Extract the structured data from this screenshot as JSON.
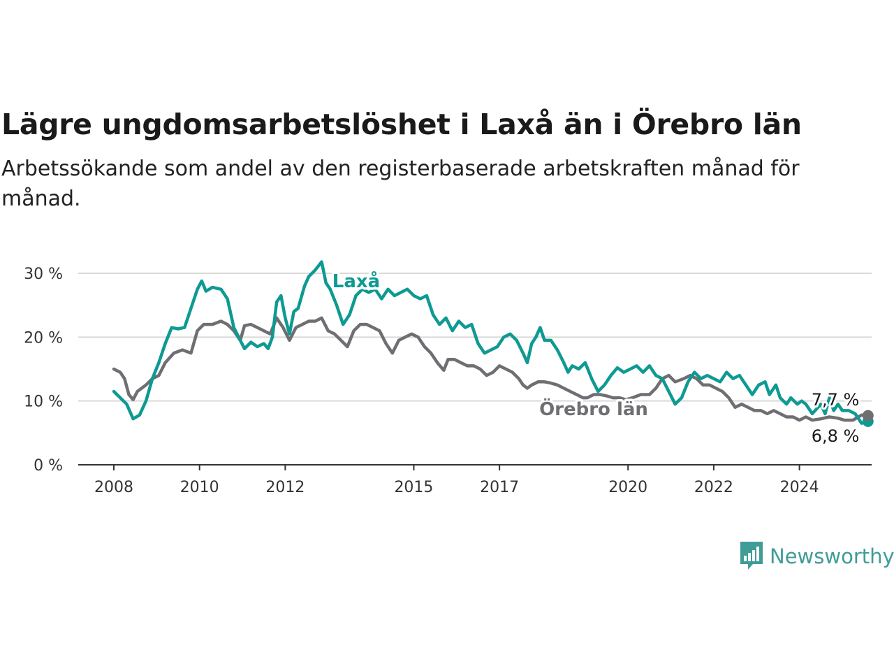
{
  "header": {
    "title": "Lägre ungdomsarbetslöshet i Laxå än i Örebro län",
    "subtitle": "Arbetssökande som andel av den registerbaserade arbetskraften månad för månad."
  },
  "brand": {
    "name": "Newsworthy",
    "icon": "bar-chart-speech-bubble-icon",
    "color": "#3f9c97"
  },
  "chart_data": {
    "type": "line",
    "title": "Lägre ungdomsarbetslöshet i Laxå än i Örebro län",
    "subtitle": "Arbetssökande som andel av den registerbaserade arbetskraften månad för månad.",
    "xlabel": "",
    "ylabel": "",
    "xlim": [
      2008,
      2025.6
    ],
    "ylim": [
      0,
      30
    ],
    "y_ticks": [
      0,
      10,
      20,
      30
    ],
    "y_tick_labels": [
      "0 %",
      "10 %",
      "20 %",
      "30 %"
    ],
    "x_ticks": [
      2008,
      2010,
      2012,
      2015,
      2017,
      2020,
      2022,
      2024
    ],
    "x_tick_labels": [
      "2008",
      "2010",
      "2012",
      "2015",
      "2017",
      "2020",
      "2022",
      "2024"
    ],
    "grid": true,
    "legend": "inline labels",
    "series": [
      {
        "name": "Laxå",
        "color": "#0e9a92",
        "end_label": "6,8 %",
        "points": [
          [
            2008.0,
            11.5
          ],
          [
            2008.15,
            10.5
          ],
          [
            2008.3,
            9.5
          ],
          [
            2008.45,
            7.2
          ],
          [
            2008.6,
            7.8
          ],
          [
            2008.75,
            10
          ],
          [
            2008.9,
            13.5
          ],
          [
            2009.05,
            16
          ],
          [
            2009.2,
            19
          ],
          [
            2009.35,
            21.5
          ],
          [
            2009.5,
            21.3
          ],
          [
            2009.65,
            21.5
          ],
          [
            2009.8,
            24.5
          ],
          [
            2009.95,
            27.5
          ],
          [
            2010.05,
            28.8
          ],
          [
            2010.15,
            27.2
          ],
          [
            2010.3,
            27.8
          ],
          [
            2010.5,
            27.5
          ],
          [
            2010.65,
            26
          ],
          [
            2010.8,
            21.5
          ],
          [
            2010.95,
            19.5
          ],
          [
            2011.05,
            18.2
          ],
          [
            2011.2,
            19.2
          ],
          [
            2011.35,
            18.5
          ],
          [
            2011.5,
            19
          ],
          [
            2011.6,
            18.2
          ],
          [
            2011.7,
            20
          ],
          [
            2011.8,
            25.5
          ],
          [
            2011.9,
            26.5
          ],
          [
            2012.0,
            23
          ],
          [
            2012.1,
            20.5
          ],
          [
            2012.2,
            24
          ],
          [
            2012.3,
            24.5
          ],
          [
            2012.45,
            28
          ],
          [
            2012.55,
            29.5
          ],
          [
            2012.7,
            30.5
          ],
          [
            2012.85,
            31.8
          ],
          [
            2012.95,
            28.5
          ],
          [
            2013.05,
            27.5
          ],
          [
            2013.2,
            25
          ],
          [
            2013.35,
            22
          ],
          [
            2013.5,
            23.5
          ],
          [
            2013.65,
            26.5
          ],
          [
            2013.8,
            27.5
          ],
          [
            2013.95,
            27
          ],
          [
            2014.1,
            27.5
          ],
          [
            2014.25,
            26
          ],
          [
            2014.4,
            27.5
          ],
          [
            2014.55,
            26.5
          ],
          [
            2014.7,
            27
          ],
          [
            2014.85,
            27.5
          ],
          [
            2015.0,
            26.5
          ],
          [
            2015.15,
            26
          ],
          [
            2015.3,
            26.5
          ],
          [
            2015.45,
            23.5
          ],
          [
            2015.6,
            22
          ],
          [
            2015.75,
            23
          ],
          [
            2015.9,
            21
          ],
          [
            2016.05,
            22.5
          ],
          [
            2016.2,
            21.5
          ],
          [
            2016.35,
            22
          ],
          [
            2016.5,
            19
          ],
          [
            2016.65,
            17.5
          ],
          [
            2016.8,
            18
          ],
          [
            2016.95,
            18.5
          ],
          [
            2017.1,
            20
          ],
          [
            2017.25,
            20.5
          ],
          [
            2017.4,
            19.5
          ],
          [
            2017.55,
            17.5
          ],
          [
            2017.65,
            16
          ],
          [
            2017.75,
            19
          ],
          [
            2017.85,
            20
          ],
          [
            2017.95,
            21.5
          ],
          [
            2018.05,
            19.5
          ],
          [
            2018.2,
            19.5
          ],
          [
            2018.35,
            18
          ],
          [
            2018.5,
            16
          ],
          [
            2018.6,
            14.5
          ],
          [
            2018.7,
            15.5
          ],
          [
            2018.85,
            15
          ],
          [
            2019.0,
            16
          ],
          [
            2019.15,
            13.5
          ],
          [
            2019.3,
            11.5
          ],
          [
            2019.45,
            12.5
          ],
          [
            2019.6,
            14
          ],
          [
            2019.75,
            15.2
          ],
          [
            2019.9,
            14.5
          ],
          [
            2020.05,
            15
          ],
          [
            2020.2,
            15.5
          ],
          [
            2020.35,
            14.5
          ],
          [
            2020.5,
            15.5
          ],
          [
            2020.65,
            14
          ],
          [
            2020.8,
            13.5
          ],
          [
            2020.95,
            11.5
          ],
          [
            2021.1,
            9.5
          ],
          [
            2021.25,
            10.5
          ],
          [
            2021.4,
            13
          ],
          [
            2021.55,
            14.5
          ],
          [
            2021.7,
            13.5
          ],
          [
            2021.85,
            14
          ],
          [
            2022.0,
            13.5
          ],
          [
            2022.15,
            13
          ],
          [
            2022.3,
            14.5
          ],
          [
            2022.45,
            13.5
          ],
          [
            2022.6,
            14
          ],
          [
            2022.75,
            12.5
          ],
          [
            2022.9,
            11
          ],
          [
            2023.05,
            12.5
          ],
          [
            2023.2,
            13
          ],
          [
            2023.3,
            11
          ],
          [
            2023.45,
            12.5
          ],
          [
            2023.55,
            10.5
          ],
          [
            2023.7,
            9.5
          ],
          [
            2023.8,
            10.5
          ],
          [
            2023.95,
            9.5
          ],
          [
            2024.05,
            10
          ],
          [
            2024.15,
            9.5
          ],
          [
            2024.3,
            8
          ],
          [
            2024.5,
            9.5
          ],
          [
            2024.6,
            8
          ],
          [
            2024.7,
            10.5
          ],
          [
            2024.8,
            8.5
          ],
          [
            2024.9,
            9.5
          ],
          [
            2025.0,
            8.5
          ],
          [
            2025.15,
            8.5
          ],
          [
            2025.3,
            8
          ],
          [
            2025.45,
            6.5
          ],
          [
            2025.6,
            6.8
          ]
        ]
      },
      {
        "name": "Örebro län",
        "color": "#6e6e73",
        "end_label": "7,7 %",
        "points": [
          [
            2008.0,
            15
          ],
          [
            2008.15,
            14.5
          ],
          [
            2008.25,
            13.5
          ],
          [
            2008.35,
            11
          ],
          [
            2008.45,
            10.2
          ],
          [
            2008.55,
            11.5
          ],
          [
            2008.75,
            12.5
          ],
          [
            2008.9,
            13.5
          ],
          [
            2009.05,
            14
          ],
          [
            2009.2,
            16
          ],
          [
            2009.4,
            17.5
          ],
          [
            2009.6,
            18
          ],
          [
            2009.8,
            17.5
          ],
          [
            2009.95,
            21
          ],
          [
            2010.1,
            22
          ],
          [
            2010.3,
            22
          ],
          [
            2010.5,
            22.5
          ],
          [
            2010.65,
            22
          ],
          [
            2010.8,
            21
          ],
          [
            2010.95,
            19.5
          ],
          [
            2011.05,
            21.8
          ],
          [
            2011.2,
            22
          ],
          [
            2011.35,
            21.5
          ],
          [
            2011.5,
            21
          ],
          [
            2011.65,
            20.5
          ],
          [
            2011.8,
            23
          ],
          [
            2011.95,
            21.5
          ],
          [
            2012.1,
            19.5
          ],
          [
            2012.25,
            21.5
          ],
          [
            2012.4,
            22
          ],
          [
            2012.55,
            22.5
          ],
          [
            2012.7,
            22.5
          ],
          [
            2012.85,
            23
          ],
          [
            2013.0,
            21
          ],
          [
            2013.15,
            20.5
          ],
          [
            2013.3,
            19.5
          ],
          [
            2013.45,
            18.5
          ],
          [
            2013.6,
            21
          ],
          [
            2013.75,
            22
          ],
          [
            2013.9,
            22
          ],
          [
            2014.05,
            21.5
          ],
          [
            2014.2,
            21
          ],
          [
            2014.35,
            19
          ],
          [
            2014.5,
            17.5
          ],
          [
            2014.65,
            19.5
          ],
          [
            2014.8,
            20
          ],
          [
            2014.95,
            20.5
          ],
          [
            2015.1,
            20
          ],
          [
            2015.25,
            18.5
          ],
          [
            2015.4,
            17.5
          ],
          [
            2015.55,
            16
          ],
          [
            2015.7,
            14.8
          ],
          [
            2015.8,
            16.5
          ],
          [
            2015.95,
            16.5
          ],
          [
            2016.1,
            16
          ],
          [
            2016.25,
            15.5
          ],
          [
            2016.4,
            15.5
          ],
          [
            2016.55,
            15
          ],
          [
            2016.7,
            14
          ],
          [
            2016.85,
            14.5
          ],
          [
            2017.0,
            15.5
          ],
          [
            2017.15,
            15
          ],
          [
            2017.3,
            14.5
          ],
          [
            2017.45,
            13.5
          ],
          [
            2017.55,
            12.5
          ],
          [
            2017.65,
            12
          ],
          [
            2017.75,
            12.5
          ],
          [
            2017.9,
            13
          ],
          [
            2018.05,
            13
          ],
          [
            2018.2,
            12.8
          ],
          [
            2018.35,
            12.5
          ],
          [
            2018.5,
            12
          ],
          [
            2018.65,
            11.5
          ],
          [
            2018.8,
            11
          ],
          [
            2018.95,
            10.5
          ],
          [
            2019.05,
            10.5
          ],
          [
            2019.2,
            11
          ],
          [
            2019.35,
            11
          ],
          [
            2019.5,
            10.8
          ],
          [
            2019.65,
            10.5
          ],
          [
            2019.8,
            10.5
          ],
          [
            2019.95,
            10.2
          ],
          [
            2020.1,
            10.5
          ],
          [
            2020.3,
            11
          ],
          [
            2020.5,
            11
          ],
          [
            2020.65,
            12
          ],
          [
            2020.8,
            13.5
          ],
          [
            2020.95,
            14
          ],
          [
            2021.1,
            13
          ],
          [
            2021.3,
            13.5
          ],
          [
            2021.45,
            14
          ],
          [
            2021.6,
            13.5
          ],
          [
            2021.75,
            12.5
          ],
          [
            2021.9,
            12.5
          ],
          [
            2022.05,
            12
          ],
          [
            2022.2,
            11.5
          ],
          [
            2022.35,
            10.5
          ],
          [
            2022.5,
            9
          ],
          [
            2022.65,
            9.5
          ],
          [
            2022.8,
            9
          ],
          [
            2022.95,
            8.5
          ],
          [
            2023.1,
            8.5
          ],
          [
            2023.25,
            8
          ],
          [
            2023.4,
            8.5
          ],
          [
            2023.55,
            8
          ],
          [
            2023.7,
            7.5
          ],
          [
            2023.85,
            7.5
          ],
          [
            2024.0,
            7
          ],
          [
            2024.15,
            7.5
          ],
          [
            2024.3,
            7
          ],
          [
            2024.5,
            7.2
          ],
          [
            2024.7,
            7.5
          ],
          [
            2024.9,
            7.3
          ],
          [
            2025.05,
            7
          ],
          [
            2025.25,
            7
          ],
          [
            2025.45,
            7.8
          ],
          [
            2025.6,
            7.7
          ]
        ]
      }
    ]
  }
}
